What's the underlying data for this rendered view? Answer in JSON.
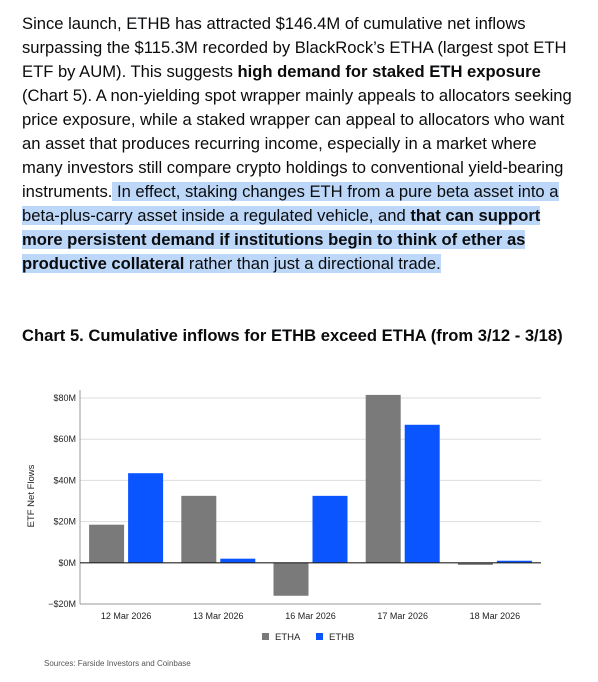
{
  "article": {
    "p1": "Since launch, ETHB has attracted $146.4M of cumulative net inflows surpassing the $115.3M recorded by BlackRock’s ETHA (largest spot ETH ETF by AUM). This suggests ",
    "p1_bold": "high demand for staked ETH exposure",
    "p1_b": " (Chart 5). A non-yielding spot wrapper mainly appeals to allocators seeking price exposure, while a staked wrapper can appeal to allocators who want an asset that produces recurring income, especially in a market where many investors still compare crypto holdings to conventional yield-bearing instruments.",
    "p1_hl_a": " In effect, staking changes ETH from a pure beta asset into a beta-plus-carry asset inside a regulated vehicle, and ",
    "p1_hl_bold": "that can support more persistent demand if institutions begin to think of ether as productive collateral",
    "p1_hl_b": " rather than just a directional trade."
  },
  "chart_heading": "Chart 5. Cumulative inflows for ETHB exceed ETHA (from 3/12 - 3/18)",
  "chart_data": {
    "type": "bar",
    "categories": [
      "12 Mar 2026",
      "13 Mar 2026",
      "16 Mar 2026",
      "17 Mar 2026",
      "18 Mar 2026"
    ],
    "series": [
      {
        "name": "ETHA",
        "color": "#7a7a7a",
        "values": [
          18.5,
          32.5,
          -16,
          81.5,
          -1
        ]
      },
      {
        "name": "ETHB",
        "color": "#0a55ff",
        "values": [
          43.5,
          2,
          32.5,
          67,
          1
        ]
      }
    ],
    "ylabel": "ETF Net Flows",
    "ylim": [
      -20,
      80
    ],
    "yticks": [
      -20,
      0,
      20,
      40,
      60,
      80
    ],
    "ytick_labels": [
      "−$20M",
      "$0M",
      "$20M",
      "$40M",
      "$60M",
      "$80M"
    ],
    "grid": true,
    "legend": "bottom-center",
    "source": "Sources: Farside Investors and Coinbase"
  }
}
